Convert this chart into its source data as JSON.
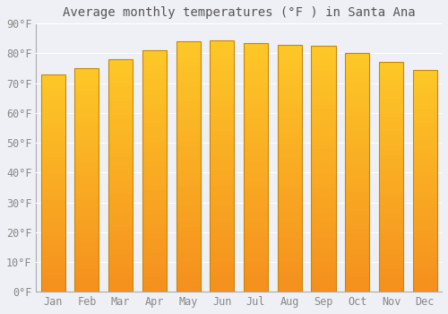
{
  "title": "Average monthly temperatures (°F ) in Santa Ana",
  "months": [
    "Jan",
    "Feb",
    "Mar",
    "Apr",
    "May",
    "Jun",
    "Jul",
    "Aug",
    "Sep",
    "Oct",
    "Nov",
    "Dec"
  ],
  "values": [
    73,
    75,
    78,
    81,
    84,
    84.5,
    83.5,
    83,
    82.5,
    80,
    77,
    74.5
  ],
  "bar_color_top": "#FDB827",
  "bar_color_bottom": "#F5901E",
  "bar_edge_color": "#C8860A",
  "background_color": "#EEF0F5",
  "plot_bg_color": "#EEF0F5",
  "grid_color": "#FFFFFF",
  "title_fontsize": 10,
  "tick_fontsize": 8.5,
  "ylim": [
    0,
    90
  ],
  "yticks": [
    0,
    10,
    20,
    30,
    40,
    50,
    60,
    70,
    80,
    90
  ],
  "ytick_labels": [
    "0°F",
    "10°F",
    "20°F",
    "30°F",
    "40°F",
    "50°F",
    "60°F",
    "70°F",
    "80°F",
    "90°F"
  ]
}
